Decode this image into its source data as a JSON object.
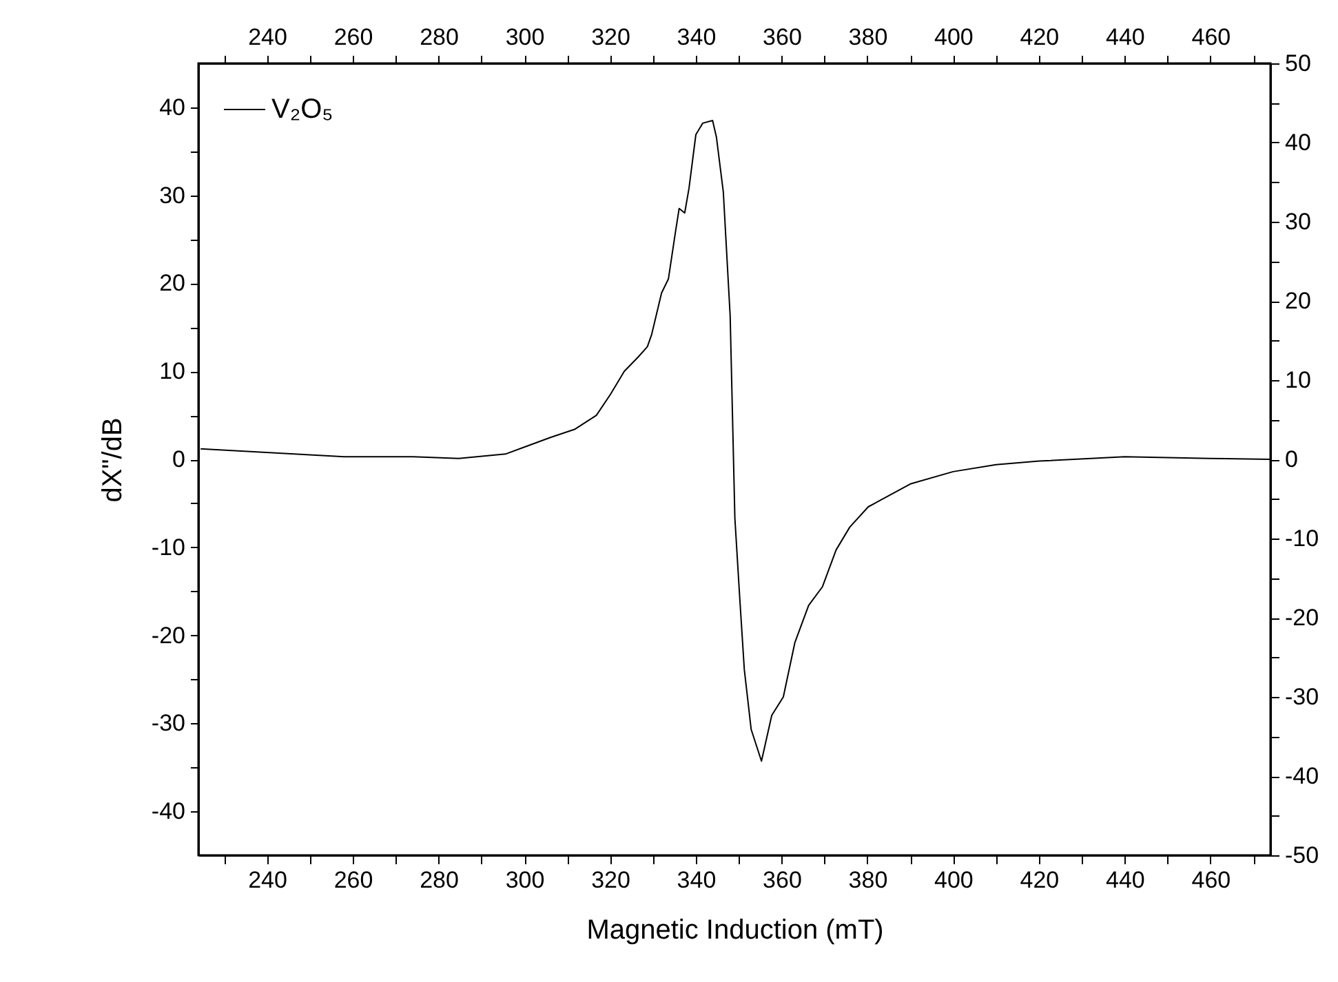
{
  "chart_data": {
    "type": "line",
    "xlabel": "Magnetic Induction (mT)",
    "ylabel": "dX\"/dB",
    "x": [
      224.5,
      258,
      274.1,
      284.7,
      295.6,
      306.2,
      311.7,
      316.8,
      320.1,
      323.3,
      326.5,
      328.7,
      329.7,
      332.0,
      333.6,
      335.2,
      336.1,
      337.4,
      338.4,
      340.0,
      341.6,
      343.9,
      344.8,
      346.4,
      348.0,
      349.1,
      350.2,
      351.3,
      352.9,
      355.3,
      357.7,
      360.4,
      363.1,
      366.3,
      369.5,
      372.7,
      375.9,
      380.2,
      390,
      400,
      410,
      420,
      440,
      460,
      474
    ],
    "series": [
      {
        "name": "V₂O₅",
        "color": "#000000",
        "values": [
          1.2,
          0.3,
          0.3,
          0.1,
          0.6,
          2.5,
          3.4,
          5.0,
          7.4,
          10.0,
          11.6,
          12.8,
          14.2,
          18.9,
          20.5,
          25.7,
          28.5,
          28.0,
          30.8,
          36.9,
          38.2,
          38.5,
          36.6,
          30.4,
          16.3,
          -6.7,
          -15.5,
          -23.9,
          -30.7,
          -34.3,
          -29.1,
          -27.0,
          -20.8,
          -16.6,
          -14.5,
          -10.3,
          -7.7,
          -5.4,
          -2.8,
          -1.4,
          -0.6,
          -0.2,
          0.3,
          0.1,
          0.0
        ]
      }
    ],
    "xlim": [
      224,
      474
    ],
    "xticks": [
      {
        "value": 230,
        "label": null
      },
      240,
      {
        "value": 250,
        "label": null
      },
      260,
      {
        "value": 270,
        "label": null
      },
      280,
      {
        "value": 290,
        "label": null
      },
      300,
      {
        "value": 310,
        "label": null
      },
      320,
      {
        "value": 330,
        "label": null
      },
      340,
      {
        "value": 350,
        "label": null
      },
      360,
      {
        "value": 370,
        "label": null
      },
      380,
      {
        "value": 390,
        "label": null
      },
      400,
      {
        "value": 410,
        "label": null
      },
      420,
      {
        "value": 430,
        "label": null
      },
      440,
      {
        "value": 450,
        "label": null
      },
      460,
      {
        "value": 470,
        "label": null
      }
    ],
    "x2lim": [
      224,
      474
    ],
    "x2ticks": [
      {
        "value": 230,
        "label": null
      },
      240,
      {
        "value": 250,
        "label": null
      },
      260,
      {
        "value": 270,
        "label": null
      },
      280,
      {
        "value": 290,
        "label": null
      },
      300,
      {
        "value": 310,
        "label": null
      },
      320,
      {
        "value": 330,
        "label": null
      },
      340,
      {
        "value": 350,
        "label": null
      },
      360,
      {
        "value": 370,
        "label": null
      },
      380,
      {
        "value": 390,
        "label": null
      },
      400,
      {
        "value": 410,
        "label": null
      },
      420,
      {
        "value": 430,
        "label": null
      },
      440,
      {
        "value": 450,
        "label": null
      },
      460,
      {
        "value": 470,
        "label": null
      }
    ],
    "ylim": [
      -45,
      45
    ],
    "yticks": [
      -40,
      {
        "value": -35,
        "label": null
      },
      -30,
      {
        "value": -25,
        "label": null
      },
      -20,
      {
        "value": -15,
        "label": null
      },
      -10,
      {
        "value": -5,
        "label": null
      },
      0,
      {
        "value": 5,
        "label": null
      },
      10,
      {
        "value": 15,
        "label": null
      },
      20,
      {
        "value": 25,
        "label": null
      },
      30,
      {
        "value": 35,
        "label": null
      },
      40
    ],
    "y2lim": [
      -50,
      50
    ],
    "y2ticks": [
      -50,
      {
        "value": -45,
        "label": null
      },
      -40,
      {
        "value": -35,
        "label": null
      },
      -30,
      {
        "value": -25,
        "label": null
      },
      -20,
      {
        "value": -15,
        "label": null
      },
      -10,
      {
        "value": -5,
        "label": null
      },
      0,
      {
        "value": 5,
        "label": null
      },
      10,
      {
        "value": 15,
        "label": null
      },
      20,
      {
        "value": 25,
        "label": null
      },
      30,
      {
        "value": 35,
        "label": null
      },
      40,
      {
        "value": 45,
        "label": null
      },
      50
    ],
    "grid": false,
    "legend": "top left",
    "line_style": "solid"
  }
}
